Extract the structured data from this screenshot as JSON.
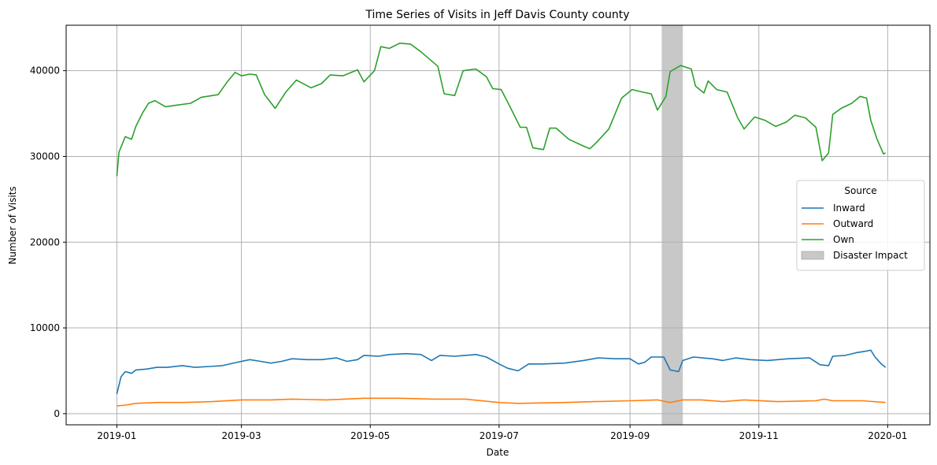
{
  "chart_data": {
    "type": "line",
    "title": "Time Series of Visits in Jeff Davis County county",
    "xlabel": "Date",
    "ylabel": "Number of Visits",
    "xlim": [
      "2018-12-08",
      "2020-01-21"
    ],
    "ylim": [
      -1300,
      45300
    ],
    "x_ticks": [
      "2019-01",
      "2019-03",
      "2019-05",
      "2019-07",
      "2019-09",
      "2019-11",
      "2020-01"
    ],
    "y_ticks": [
      0,
      10000,
      20000,
      30000,
      40000
    ],
    "grid": true,
    "legend": {
      "title": "Source",
      "placement": "center-right"
    },
    "shaded_region": {
      "name": "Disaster Impact",
      "start": "2019-09-16",
      "end": "2019-09-26",
      "color": "#c8c8c8"
    },
    "series": [
      {
        "name": "Inward",
        "color": "#1f77b4",
        "points": [
          [
            "2019-01-01",
            2300
          ],
          [
            "2019-01-03",
            4300
          ],
          [
            "2019-01-05",
            4900
          ],
          [
            "2019-01-08",
            4700
          ],
          [
            "2019-01-10",
            5100
          ],
          [
            "2019-01-15",
            5200
          ],
          [
            "2019-01-20",
            5400
          ],
          [
            "2019-01-25",
            5400
          ],
          [
            "2019-02-01",
            5600
          ],
          [
            "2019-02-07",
            5400
          ],
          [
            "2019-02-14",
            5500
          ],
          [
            "2019-02-20",
            5600
          ],
          [
            "2019-02-27",
            6000
          ],
          [
            "2019-03-05",
            6300
          ],
          [
            "2019-03-10",
            6100
          ],
          [
            "2019-03-15",
            5900
          ],
          [
            "2019-03-20",
            6100
          ],
          [
            "2019-03-25",
            6400
          ],
          [
            "2019-04-01",
            6300
          ],
          [
            "2019-04-08",
            6300
          ],
          [
            "2019-04-15",
            6500
          ],
          [
            "2019-04-20",
            6100
          ],
          [
            "2019-04-25",
            6300
          ],
          [
            "2019-04-28",
            6800
          ],
          [
            "2019-05-05",
            6700
          ],
          [
            "2019-05-10",
            6900
          ],
          [
            "2019-05-18",
            7000
          ],
          [
            "2019-05-25",
            6900
          ],
          [
            "2019-05-30",
            6200
          ],
          [
            "2019-06-03",
            6800
          ],
          [
            "2019-06-10",
            6700
          ],
          [
            "2019-06-15",
            6800
          ],
          [
            "2019-06-20",
            6900
          ],
          [
            "2019-06-25",
            6600
          ],
          [
            "2019-07-01",
            5800
          ],
          [
            "2019-07-05",
            5300
          ],
          [
            "2019-07-10",
            5000
          ],
          [
            "2019-07-15",
            5800
          ],
          [
            "2019-07-22",
            5800
          ],
          [
            "2019-08-01",
            5900
          ],
          [
            "2019-08-10",
            6200
          ],
          [
            "2019-08-17",
            6500
          ],
          [
            "2019-08-25",
            6400
          ],
          [
            "2019-09-01",
            6400
          ],
          [
            "2019-09-05",
            5800
          ],
          [
            "2019-09-08",
            6000
          ],
          [
            "2019-09-11",
            6600
          ],
          [
            "2019-09-17",
            6600
          ],
          [
            "2019-09-20",
            5100
          ],
          [
            "2019-09-24",
            4900
          ],
          [
            "2019-09-26",
            6200
          ],
          [
            "2019-10-01",
            6600
          ],
          [
            "2019-10-10",
            6400
          ],
          [
            "2019-10-15",
            6200
          ],
          [
            "2019-10-21",
            6500
          ],
          [
            "2019-10-28",
            6300
          ],
          [
            "2019-11-05",
            6200
          ],
          [
            "2019-11-15",
            6400
          ],
          [
            "2019-11-25",
            6500
          ],
          [
            "2019-11-30",
            5700
          ],
          [
            "2019-12-04",
            5600
          ],
          [
            "2019-12-06",
            6700
          ],
          [
            "2019-12-12",
            6800
          ],
          [
            "2019-12-17",
            7100
          ],
          [
            "2019-12-22",
            7300
          ],
          [
            "2019-12-24",
            7400
          ],
          [
            "2019-12-26",
            6600
          ],
          [
            "2019-12-29",
            5800
          ],
          [
            "2019-12-31",
            5400
          ]
        ]
      },
      {
        "name": "Outward",
        "color": "#ff7f0e",
        "points": [
          [
            "2019-01-01",
            900
          ],
          [
            "2019-01-05",
            1000
          ],
          [
            "2019-01-10",
            1200
          ],
          [
            "2019-01-20",
            1300
          ],
          [
            "2019-02-01",
            1300
          ],
          [
            "2019-02-15",
            1400
          ],
          [
            "2019-03-01",
            1600
          ],
          [
            "2019-03-15",
            1600
          ],
          [
            "2019-03-25",
            1700
          ],
          [
            "2019-04-10",
            1600
          ],
          [
            "2019-04-28",
            1800
          ],
          [
            "2019-05-15",
            1800
          ],
          [
            "2019-06-01",
            1700
          ],
          [
            "2019-06-15",
            1700
          ],
          [
            "2019-07-01",
            1300
          ],
          [
            "2019-07-10",
            1200
          ],
          [
            "2019-08-01",
            1300
          ],
          [
            "2019-08-15",
            1400
          ],
          [
            "2019-09-01",
            1500
          ],
          [
            "2019-09-14",
            1600
          ],
          [
            "2019-09-20",
            1300
          ],
          [
            "2019-09-26",
            1600
          ],
          [
            "2019-10-05",
            1600
          ],
          [
            "2019-10-15",
            1400
          ],
          [
            "2019-10-25",
            1600
          ],
          [
            "2019-11-10",
            1400
          ],
          [
            "2019-11-28",
            1500
          ],
          [
            "2019-12-02",
            1700
          ],
          [
            "2019-12-06",
            1500
          ],
          [
            "2019-12-20",
            1500
          ],
          [
            "2019-12-31",
            1300
          ]
        ]
      },
      {
        "name": "Own",
        "color": "#2ca02c",
        "points": [
          [
            "2019-01-01",
            27700
          ],
          [
            "2019-01-02",
            30500
          ],
          [
            "2019-01-05",
            32300
          ],
          [
            "2019-01-08",
            32000
          ],
          [
            "2019-01-10",
            33500
          ],
          [
            "2019-01-13",
            35000
          ],
          [
            "2019-01-16",
            36200
          ],
          [
            "2019-01-19",
            36500
          ],
          [
            "2019-01-24",
            35800
          ],
          [
            "2019-01-30",
            36000
          ],
          [
            "2019-02-05",
            36200
          ],
          [
            "2019-02-10",
            36900
          ],
          [
            "2019-02-18",
            37200
          ],
          [
            "2019-02-22",
            38600
          ],
          [
            "2019-02-26",
            39800
          ],
          [
            "2019-03-01",
            39400
          ],
          [
            "2019-03-05",
            39600
          ],
          [
            "2019-03-08",
            39500
          ],
          [
            "2019-03-12",
            37200
          ],
          [
            "2019-03-17",
            35600
          ],
          [
            "2019-03-22",
            37500
          ],
          [
            "2019-03-27",
            38900
          ],
          [
            "2019-04-03",
            38000
          ],
          [
            "2019-04-08",
            38500
          ],
          [
            "2019-04-12",
            39500
          ],
          [
            "2019-04-18",
            39400
          ],
          [
            "2019-04-25",
            40100
          ],
          [
            "2019-04-28",
            38700
          ],
          [
            "2019-05-03",
            40000
          ],
          [
            "2019-05-06",
            42800
          ],
          [
            "2019-05-10",
            42600
          ],
          [
            "2019-05-15",
            43200
          ],
          [
            "2019-05-20",
            43100
          ],
          [
            "2019-05-25",
            42200
          ],
          [
            "2019-06-02",
            40500
          ],
          [
            "2019-06-05",
            37300
          ],
          [
            "2019-06-10",
            37100
          ],
          [
            "2019-06-14",
            40000
          ],
          [
            "2019-06-20",
            40200
          ],
          [
            "2019-06-25",
            39300
          ],
          [
            "2019-06-28",
            37900
          ],
          [
            "2019-07-02",
            37800
          ],
          [
            "2019-07-07",
            35400
          ],
          [
            "2019-07-11",
            33400
          ],
          [
            "2019-07-14",
            33400
          ],
          [
            "2019-07-17",
            31000
          ],
          [
            "2019-07-22",
            30800
          ],
          [
            "2019-07-25",
            33300
          ],
          [
            "2019-07-28",
            33300
          ],
          [
            "2019-08-03",
            32000
          ],
          [
            "2019-08-10",
            31200
          ],
          [
            "2019-08-13",
            30900
          ],
          [
            "2019-08-16",
            31600
          ],
          [
            "2019-08-22",
            33200
          ],
          [
            "2019-08-28",
            36800
          ],
          [
            "2019-09-02",
            37800
          ],
          [
            "2019-09-07",
            37500
          ],
          [
            "2019-09-11",
            37300
          ],
          [
            "2019-09-14",
            35400
          ],
          [
            "2019-09-18",
            37000
          ],
          [
            "2019-09-20",
            39900
          ],
          [
            "2019-09-25",
            40600
          ],
          [
            "2019-09-30",
            40200
          ],
          [
            "2019-10-02",
            38200
          ],
          [
            "2019-10-06",
            37400
          ],
          [
            "2019-10-08",
            38800
          ],
          [
            "2019-10-12",
            37800
          ],
          [
            "2019-10-17",
            37500
          ],
          [
            "2019-10-22",
            34500
          ],
          [
            "2019-10-25",
            33200
          ],
          [
            "2019-10-30",
            34600
          ],
          [
            "2019-11-04",
            34200
          ],
          [
            "2019-11-09",
            33500
          ],
          [
            "2019-11-14",
            34000
          ],
          [
            "2019-11-18",
            34800
          ],
          [
            "2019-11-23",
            34500
          ],
          [
            "2019-11-28",
            33400
          ],
          [
            "2019-12-01",
            29500
          ],
          [
            "2019-12-04",
            30400
          ],
          [
            "2019-12-06",
            34900
          ],
          [
            "2019-12-10",
            35600
          ],
          [
            "2019-12-15",
            36200
          ],
          [
            "2019-12-19",
            37000
          ],
          [
            "2019-12-22",
            36800
          ],
          [
            "2019-12-24",
            34200
          ],
          [
            "2019-12-27",
            32000
          ],
          [
            "2019-12-30",
            30300
          ],
          [
            "2019-12-31",
            30400
          ]
        ]
      }
    ]
  }
}
